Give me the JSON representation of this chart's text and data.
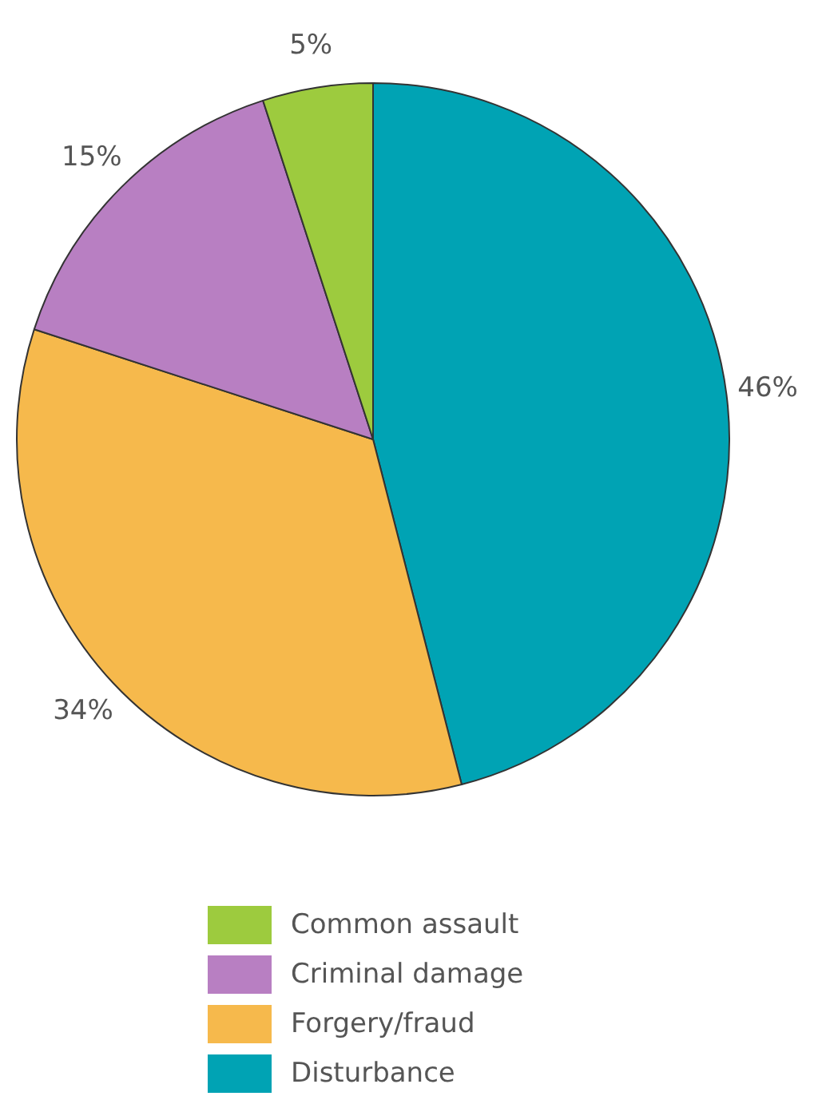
{
  "chart_data": {
    "type": "pie",
    "categories": [
      "Disturbance",
      "Forgery/fraud",
      "Criminal damage",
      "Common assault"
    ],
    "values": [
      46,
      34,
      15,
      5
    ],
    "colors": [
      "#00a3b4",
      "#f6b94c",
      "#b87fc2",
      "#9dcb3e"
    ],
    "value_labels": [
      "46%",
      "34%",
      "15%",
      "5%"
    ],
    "legend": "bottom"
  }
}
